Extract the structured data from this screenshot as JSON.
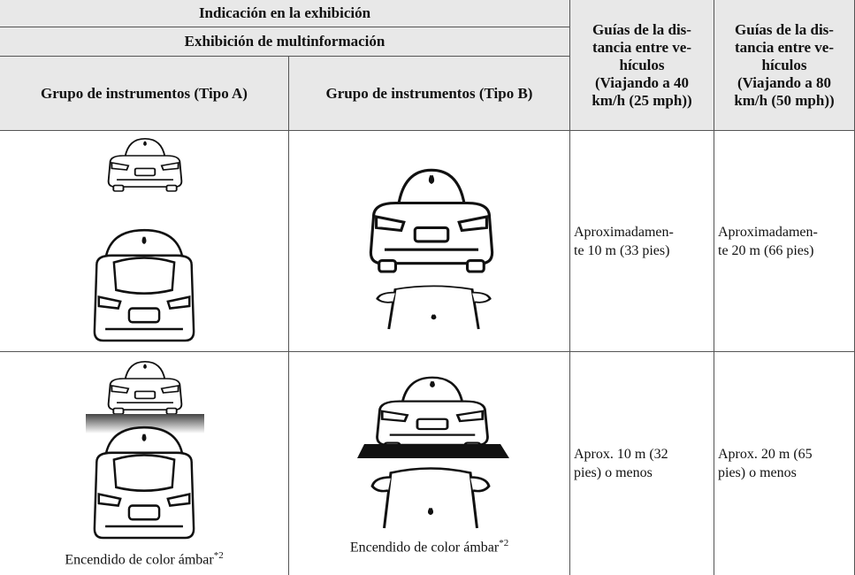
{
  "table": {
    "header": {
      "display": "Indicación en la exhibición",
      "multi": "Exhibición de multinformación",
      "type_a": "Grupo de instrumentos (Tipo A)",
      "type_b": "Grupo de instrumentos (Tipo B)",
      "guide_40": [
        "Guías de la dis-",
        "tancia entre ve-",
        "hículos",
        "(Viajando a 40",
        "km/h (25 mph))"
      ],
      "guide_80": [
        "Guías de la dis-",
        "tancia entre ve-",
        "hículos",
        "(Viajando a 80",
        "km/h (50 mph))"
      ]
    },
    "rows": [
      {
        "guide_40": [
          "Aproximadamen-",
          "te 10 m (33 pies)"
        ],
        "guide_80": [
          "Aproximadamen-",
          "te 20 m (66 pies)"
        ]
      },
      {
        "caption_a": "Encendido de color ámbar",
        "caption_a_note": "*2",
        "caption_b": "Encendido de color ámbar",
        "caption_b_note": "*2",
        "guide_40": [
          "Aprox. 10 m (32",
          "pies) o menos"
        ],
        "guide_80": [
          "Aprox. 20 m (65",
          "pies) o menos"
        ]
      }
    ]
  }
}
